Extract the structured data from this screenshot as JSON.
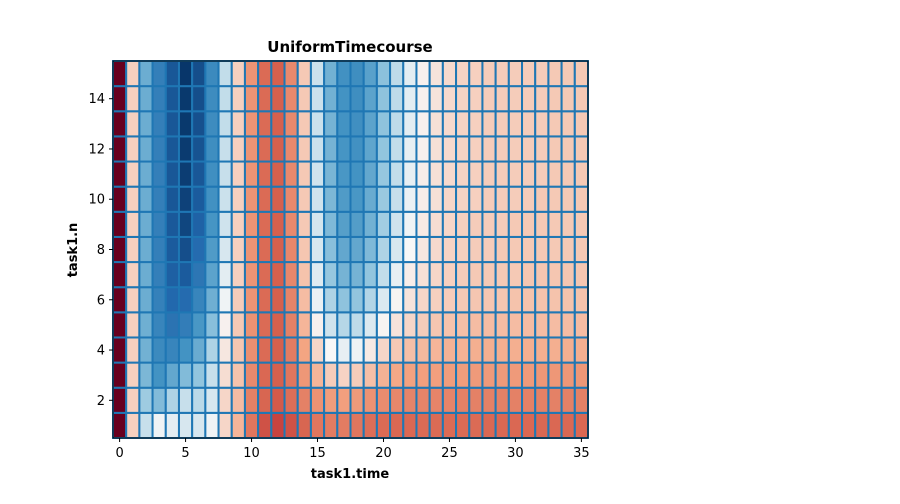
{
  "chart_data": {
    "type": "heatmap",
    "title": "UniformTimecourse",
    "xlabel": "task1.time",
    "ylabel": "task1.n",
    "x": [
      0,
      1,
      2,
      3,
      4,
      5,
      6,
      7,
      8,
      9,
      10,
      11,
      12,
      13,
      14,
      15,
      16,
      17,
      18,
      19,
      20,
      21,
      22,
      23,
      24,
      25,
      26,
      27,
      28,
      29,
      30,
      31,
      32,
      33,
      34,
      35
    ],
    "y": [
      1,
      2,
      3,
      4,
      5,
      6,
      7,
      8,
      9,
      10,
      11,
      12,
      13,
      14,
      15
    ],
    "xlim": [
      -0.5,
      35.5
    ],
    "ylim": [
      0.5,
      15.5
    ],
    "xticks": [
      0,
      5,
      10,
      15,
      20,
      25,
      30,
      35
    ],
    "yticks": [
      2,
      4,
      6,
      8,
      10,
      12,
      14
    ],
    "colormap": "RdBu_r",
    "value_range": [
      -1,
      1
    ],
    "values": [
      [
        1.0,
        0.12,
        -0.12,
        -0.02,
        -0.05,
        -0.08,
        -0.08,
        -0.02,
        0.1,
        0.2,
        0.42,
        0.55,
        0.6,
        0.55,
        0.48,
        0.42,
        0.4,
        0.4,
        0.42,
        0.45,
        0.46,
        0.47,
        0.47,
        0.46,
        0.46,
        0.46,
        0.46,
        0.46,
        0.47,
        0.47,
        0.47,
        0.47,
        0.47,
        0.47,
        0.47,
        0.47
      ],
      [
        1.0,
        0.12,
        -0.22,
        -0.3,
        -0.18,
        -0.12,
        -0.15,
        -0.08,
        0.1,
        0.18,
        0.38,
        0.48,
        0.52,
        0.45,
        0.38,
        0.32,
        0.28,
        0.27,
        0.29,
        0.32,
        0.34,
        0.36,
        0.37,
        0.37,
        0.37,
        0.37,
        0.38,
        0.38,
        0.38,
        0.38,
        0.38,
        0.38,
        0.38,
        0.38,
        0.38,
        0.38
      ],
      [
        1.0,
        0.12,
        -0.32,
        -0.5,
        -0.4,
        -0.3,
        -0.25,
        -0.12,
        0.08,
        0.16,
        0.35,
        0.47,
        0.5,
        0.42,
        0.3,
        0.2,
        0.13,
        0.11,
        0.13,
        0.17,
        0.21,
        0.24,
        0.26,
        0.27,
        0.27,
        0.28,
        0.28,
        0.29,
        0.29,
        0.29,
        0.29,
        0.29,
        0.3,
        0.3,
        0.3,
        0.3
      ],
      [
        1.0,
        0.12,
        -0.35,
        -0.55,
        -0.58,
        -0.5,
        -0.38,
        -0.18,
        0.05,
        0.15,
        0.33,
        0.46,
        0.5,
        0.4,
        0.25,
        0.1,
        0.0,
        -0.04,
        -0.02,
        0.04,
        0.1,
        0.14,
        0.17,
        0.19,
        0.2,
        0.21,
        0.21,
        0.22,
        0.22,
        0.22,
        0.22,
        0.22,
        0.22,
        0.22,
        0.22,
        0.22
      ],
      [
        1.0,
        0.12,
        -0.36,
        -0.58,
        -0.68,
        -0.62,
        -0.48,
        -0.28,
        0.02,
        0.14,
        0.32,
        0.46,
        0.5,
        0.38,
        0.2,
        0.02,
        -0.1,
        -0.16,
        -0.14,
        -0.07,
        0.01,
        0.06,
        0.1,
        0.13,
        0.15,
        0.16,
        0.17,
        0.18,
        0.18,
        0.18,
        0.18,
        0.18,
        0.18,
        0.18,
        0.18,
        0.18
      ],
      [
        1.0,
        0.12,
        -0.37,
        -0.6,
        -0.74,
        -0.72,
        -0.58,
        -0.36,
        -0.02,
        0.13,
        0.31,
        0.46,
        0.5,
        0.37,
        0.18,
        -0.03,
        -0.18,
        -0.26,
        -0.25,
        -0.17,
        -0.07,
        0.01,
        0.06,
        0.1,
        0.12,
        0.13,
        0.14,
        0.15,
        0.15,
        0.15,
        0.16,
        0.16,
        0.16,
        0.16,
        0.16,
        0.16
      ],
      [
        1.0,
        0.12,
        -0.37,
        -0.61,
        -0.78,
        -0.8,
        -0.66,
        -0.42,
        -0.05,
        0.12,
        0.31,
        0.46,
        0.5,
        0.36,
        0.16,
        -0.06,
        -0.24,
        -0.34,
        -0.34,
        -0.25,
        -0.13,
        -0.04,
        0.03,
        0.07,
        0.1,
        0.12,
        0.13,
        0.14,
        0.14,
        0.14,
        0.14,
        0.15,
        0.15,
        0.15,
        0.15,
        0.15
      ],
      [
        1.0,
        0.12,
        -0.37,
        -0.61,
        -0.8,
        -0.86,
        -0.72,
        -0.46,
        -0.08,
        0.12,
        0.31,
        0.46,
        0.5,
        0.36,
        0.15,
        -0.08,
        -0.28,
        -0.4,
        -0.4,
        -0.31,
        -0.18,
        -0.08,
        0.0,
        0.05,
        0.09,
        0.11,
        0.12,
        0.13,
        0.13,
        0.14,
        0.14,
        0.14,
        0.14,
        0.14,
        0.14,
        0.14
      ],
      [
        1.0,
        0.12,
        -0.37,
        -0.61,
        -0.81,
        -0.9,
        -0.77,
        -0.49,
        -0.1,
        0.12,
        0.31,
        0.46,
        0.5,
        0.35,
        0.14,
        -0.09,
        -0.31,
        -0.44,
        -0.45,
        -0.35,
        -0.21,
        -0.1,
        -0.02,
        0.04,
        0.08,
        0.1,
        0.12,
        0.13,
        0.13,
        0.13,
        0.14,
        0.14,
        0.14,
        0.14,
        0.14,
        0.14
      ],
      [
        1.0,
        0.12,
        -0.37,
        -0.61,
        -0.82,
        -0.92,
        -0.8,
        -0.51,
        -0.11,
        0.12,
        0.31,
        0.46,
        0.5,
        0.35,
        0.14,
        -0.1,
        -0.32,
        -0.46,
        -0.48,
        -0.38,
        -0.23,
        -0.12,
        -0.03,
        0.03,
        0.07,
        0.1,
        0.11,
        0.12,
        0.13,
        0.13,
        0.13,
        0.13,
        0.14,
        0.14,
        0.14,
        0.14
      ],
      [
        1.0,
        0.12,
        -0.37,
        -0.61,
        -0.82,
        -0.94,
        -0.82,
        -0.52,
        -0.12,
        0.12,
        0.31,
        0.46,
        0.5,
        0.35,
        0.14,
        -0.1,
        -0.33,
        -0.48,
        -0.5,
        -0.4,
        -0.24,
        -0.13,
        -0.04,
        0.03,
        0.07,
        0.09,
        0.11,
        0.12,
        0.13,
        0.13,
        0.13,
        0.13,
        0.13,
        0.14,
        0.14,
        0.14
      ],
      [
        1.0,
        0.12,
        -0.37,
        -0.61,
        -0.82,
        -0.95,
        -0.84,
        -0.53,
        -0.12,
        0.12,
        0.31,
        0.46,
        0.5,
        0.35,
        0.14,
        -0.11,
        -0.34,
        -0.49,
        -0.51,
        -0.41,
        -0.25,
        -0.13,
        -0.04,
        0.02,
        0.07,
        0.09,
        0.11,
        0.12,
        0.13,
        0.13,
        0.13,
        0.13,
        0.13,
        0.14,
        0.14,
        0.14
      ],
      [
        1.0,
        0.12,
        -0.37,
        -0.61,
        -0.82,
        -0.96,
        -0.85,
        -0.54,
        -0.13,
        0.12,
        0.31,
        0.46,
        0.5,
        0.35,
        0.14,
        -0.11,
        -0.34,
        -0.5,
        -0.52,
        -0.42,
        -0.26,
        -0.14,
        -0.05,
        0.02,
        0.07,
        0.09,
        0.11,
        0.12,
        0.13,
        0.13,
        0.13,
        0.13,
        0.13,
        0.14,
        0.14,
        0.14
      ],
      [
        1.0,
        0.12,
        -0.37,
        -0.61,
        -0.82,
        -0.96,
        -0.86,
        -0.54,
        -0.13,
        0.12,
        0.31,
        0.46,
        0.5,
        0.35,
        0.14,
        -0.11,
        -0.35,
        -0.5,
        -0.53,
        -0.42,
        -0.26,
        -0.14,
        -0.05,
        0.02,
        0.06,
        0.09,
        0.11,
        0.12,
        0.13,
        0.13,
        0.13,
        0.13,
        0.13,
        0.14,
        0.14,
        0.14
      ],
      [
        1.0,
        0.12,
        -0.37,
        -0.61,
        -0.82,
        -0.97,
        -0.86,
        -0.55,
        -0.13,
        0.12,
        0.31,
        0.46,
        0.5,
        0.35,
        0.14,
        -0.11,
        -0.35,
        -0.51,
        -0.53,
        -0.43,
        -0.27,
        -0.14,
        -0.05,
        0.02,
        0.06,
        0.09,
        0.11,
        0.12,
        0.13,
        0.13,
        0.13,
        0.13,
        0.13,
        0.14,
        0.14,
        0.14
      ]
    ],
    "cell_border_color": "#1f77b4",
    "colors": {
      "low": "#053061",
      "mid": "#f7f7f7",
      "high": "#67001f"
    }
  }
}
